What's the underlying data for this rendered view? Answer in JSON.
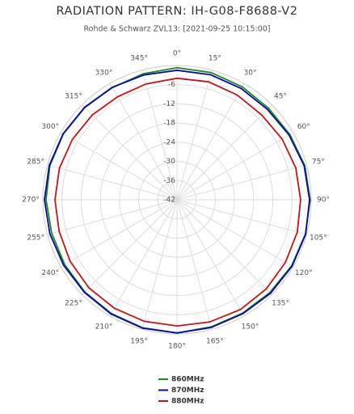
{
  "chart_data": {
    "type": "polar",
    "title": "RADIATION PATTERN: IH-G08-F8688-V2",
    "subtitle": "Rohde & Schwarz ZVL13: [2021-09-25 10:15:00]",
    "x": [
      0,
      15,
      30,
      45,
      60,
      75,
      90,
      105,
      120,
      135,
      150,
      165,
      180,
      195,
      210,
      225,
      240,
      255,
      270,
      285,
      300,
      315,
      330,
      345
    ],
    "xticks": [
      {
        "value": 0,
        "label": "0°"
      },
      {
        "value": 15,
        "label": "15°"
      },
      {
        "value": 30,
        "label": "30°"
      },
      {
        "value": 45,
        "label": "45°"
      },
      {
        "value": 60,
        "label": "60°"
      },
      {
        "value": 75,
        "label": "75°"
      },
      {
        "value": 90,
        "label": "90°"
      },
      {
        "value": 105,
        "label": "105°"
      },
      {
        "value": 120,
        "label": "120°"
      },
      {
        "value": 135,
        "label": "135°"
      },
      {
        "value": 150,
        "label": "150°"
      },
      {
        "value": 165,
        "label": "165°"
      },
      {
        "value": 180,
        "label": "180°"
      },
      {
        "value": 195,
        "label": "195°"
      },
      {
        "value": 210,
        "label": "210°"
      },
      {
        "value": 225,
        "label": "225°"
      },
      {
        "value": 240,
        "label": "240°"
      },
      {
        "value": 255,
        "label": "255°"
      },
      {
        "value": 270,
        "label": "270°"
      },
      {
        "value": 285,
        "label": "285°"
      },
      {
        "value": 300,
        "label": "300°"
      },
      {
        "value": 315,
        "label": "315°"
      },
      {
        "value": 330,
        "label": "330°"
      },
      {
        "value": 345,
        "label": "345°"
      }
    ],
    "ylim": [
      -42,
      0
    ],
    "yticks": [
      -42,
      -36,
      -30,
      -24,
      -18,
      -12,
      -6
    ],
    "grid": true,
    "series": [
      {
        "name": "860MHz",
        "color": "#1a8a1a",
        "values": [
          -0.7,
          -0.8,
          -1.2,
          -1.5,
          -1.2,
          -0.6,
          -0.3,
          -0.4,
          -0.6,
          -0.9,
          -1.0,
          -0.8,
          -0.3,
          -0.5,
          -0.9,
          -1.2,
          -1.4,
          -1.4,
          -1.0,
          -0.8,
          -0.9,
          -1.2,
          -1.5,
          -1.2
        ]
      },
      {
        "name": "870MHz",
        "color": "#0a0aa8",
        "values": [
          -1.5,
          -1.5,
          -1.8,
          -2.0,
          -1.5,
          -0.8,
          -0.5,
          -0.3,
          -0.4,
          -0.6,
          -0.8,
          -0.6,
          -0.3,
          -0.4,
          -0.7,
          -1.0,
          -1.0,
          -0.8,
          -0.5,
          -0.6,
          -0.8,
          -1.1,
          -1.4,
          -1.6
        ]
      },
      {
        "name": "880MHz",
        "color": "#cc1111",
        "values": [
          -4.0,
          -3.8,
          -4.2,
          -4.5,
          -4.0,
          -3.5,
          -3.3,
          -3.0,
          -2.8,
          -2.5,
          -2.3,
          -2.4,
          -2.5,
          -2.6,
          -2.8,
          -3.0,
          -3.4,
          -3.8,
          -3.8,
          -3.9,
          -4.2,
          -4.5,
          -4.8,
          -4.5
        ]
      }
    ]
  }
}
